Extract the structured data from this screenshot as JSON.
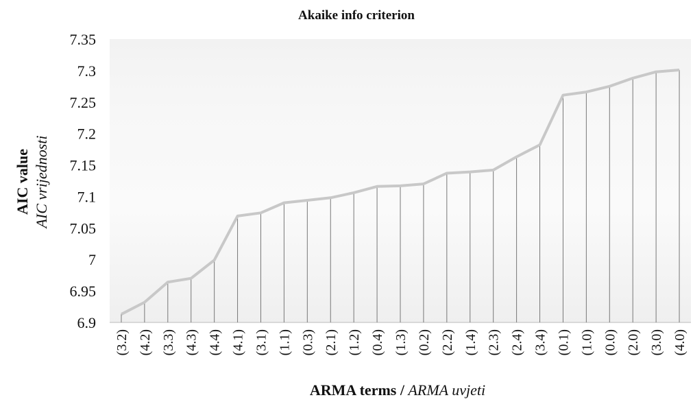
{
  "chart_data": {
    "type": "line",
    "title": "Akaike info criterion",
    "y_label": [
      "AIC value",
      "AIC vrijednosti"
    ],
    "x_label": [
      "ARMA terms /",
      "ARMA uvjeti"
    ],
    "categories": [
      "(3.2)",
      "(4.2)",
      "(3.3)",
      "(4.3)",
      "(4.4)",
      "(4.1)",
      "(3.1)",
      "(1.1)",
      "(0.3)",
      "(2.1)",
      "(1.2)",
      "(0.4)",
      "(1.3)",
      "(0.2)",
      "(2.2)",
      "(1.4)",
      "(2.3)",
      "(2.4)",
      "(3.4)",
      "(0.1)",
      "(1.0)",
      "(0.0)",
      "(2.0)",
      "(3.0)",
      "(4.0)"
    ],
    "values": [
      6.913,
      6.932,
      6.964,
      6.97,
      6.999,
      7.069,
      7.074,
      7.09,
      7.094,
      7.098,
      7.106,
      7.116,
      7.117,
      7.12,
      7.137,
      7.139,
      7.142,
      7.163,
      7.182,
      7.261,
      7.266,
      7.275,
      7.288,
      7.298,
      7.301
    ],
    "color": "#c8c8c8",
    "drop_lines": true,
    "ylim": [
      6.9,
      7.35
    ],
    "yticks": [
      6.9,
      6.95,
      7,
      7.05,
      7.1,
      7.15,
      7.2,
      7.25,
      7.3,
      7.35
    ]
  }
}
